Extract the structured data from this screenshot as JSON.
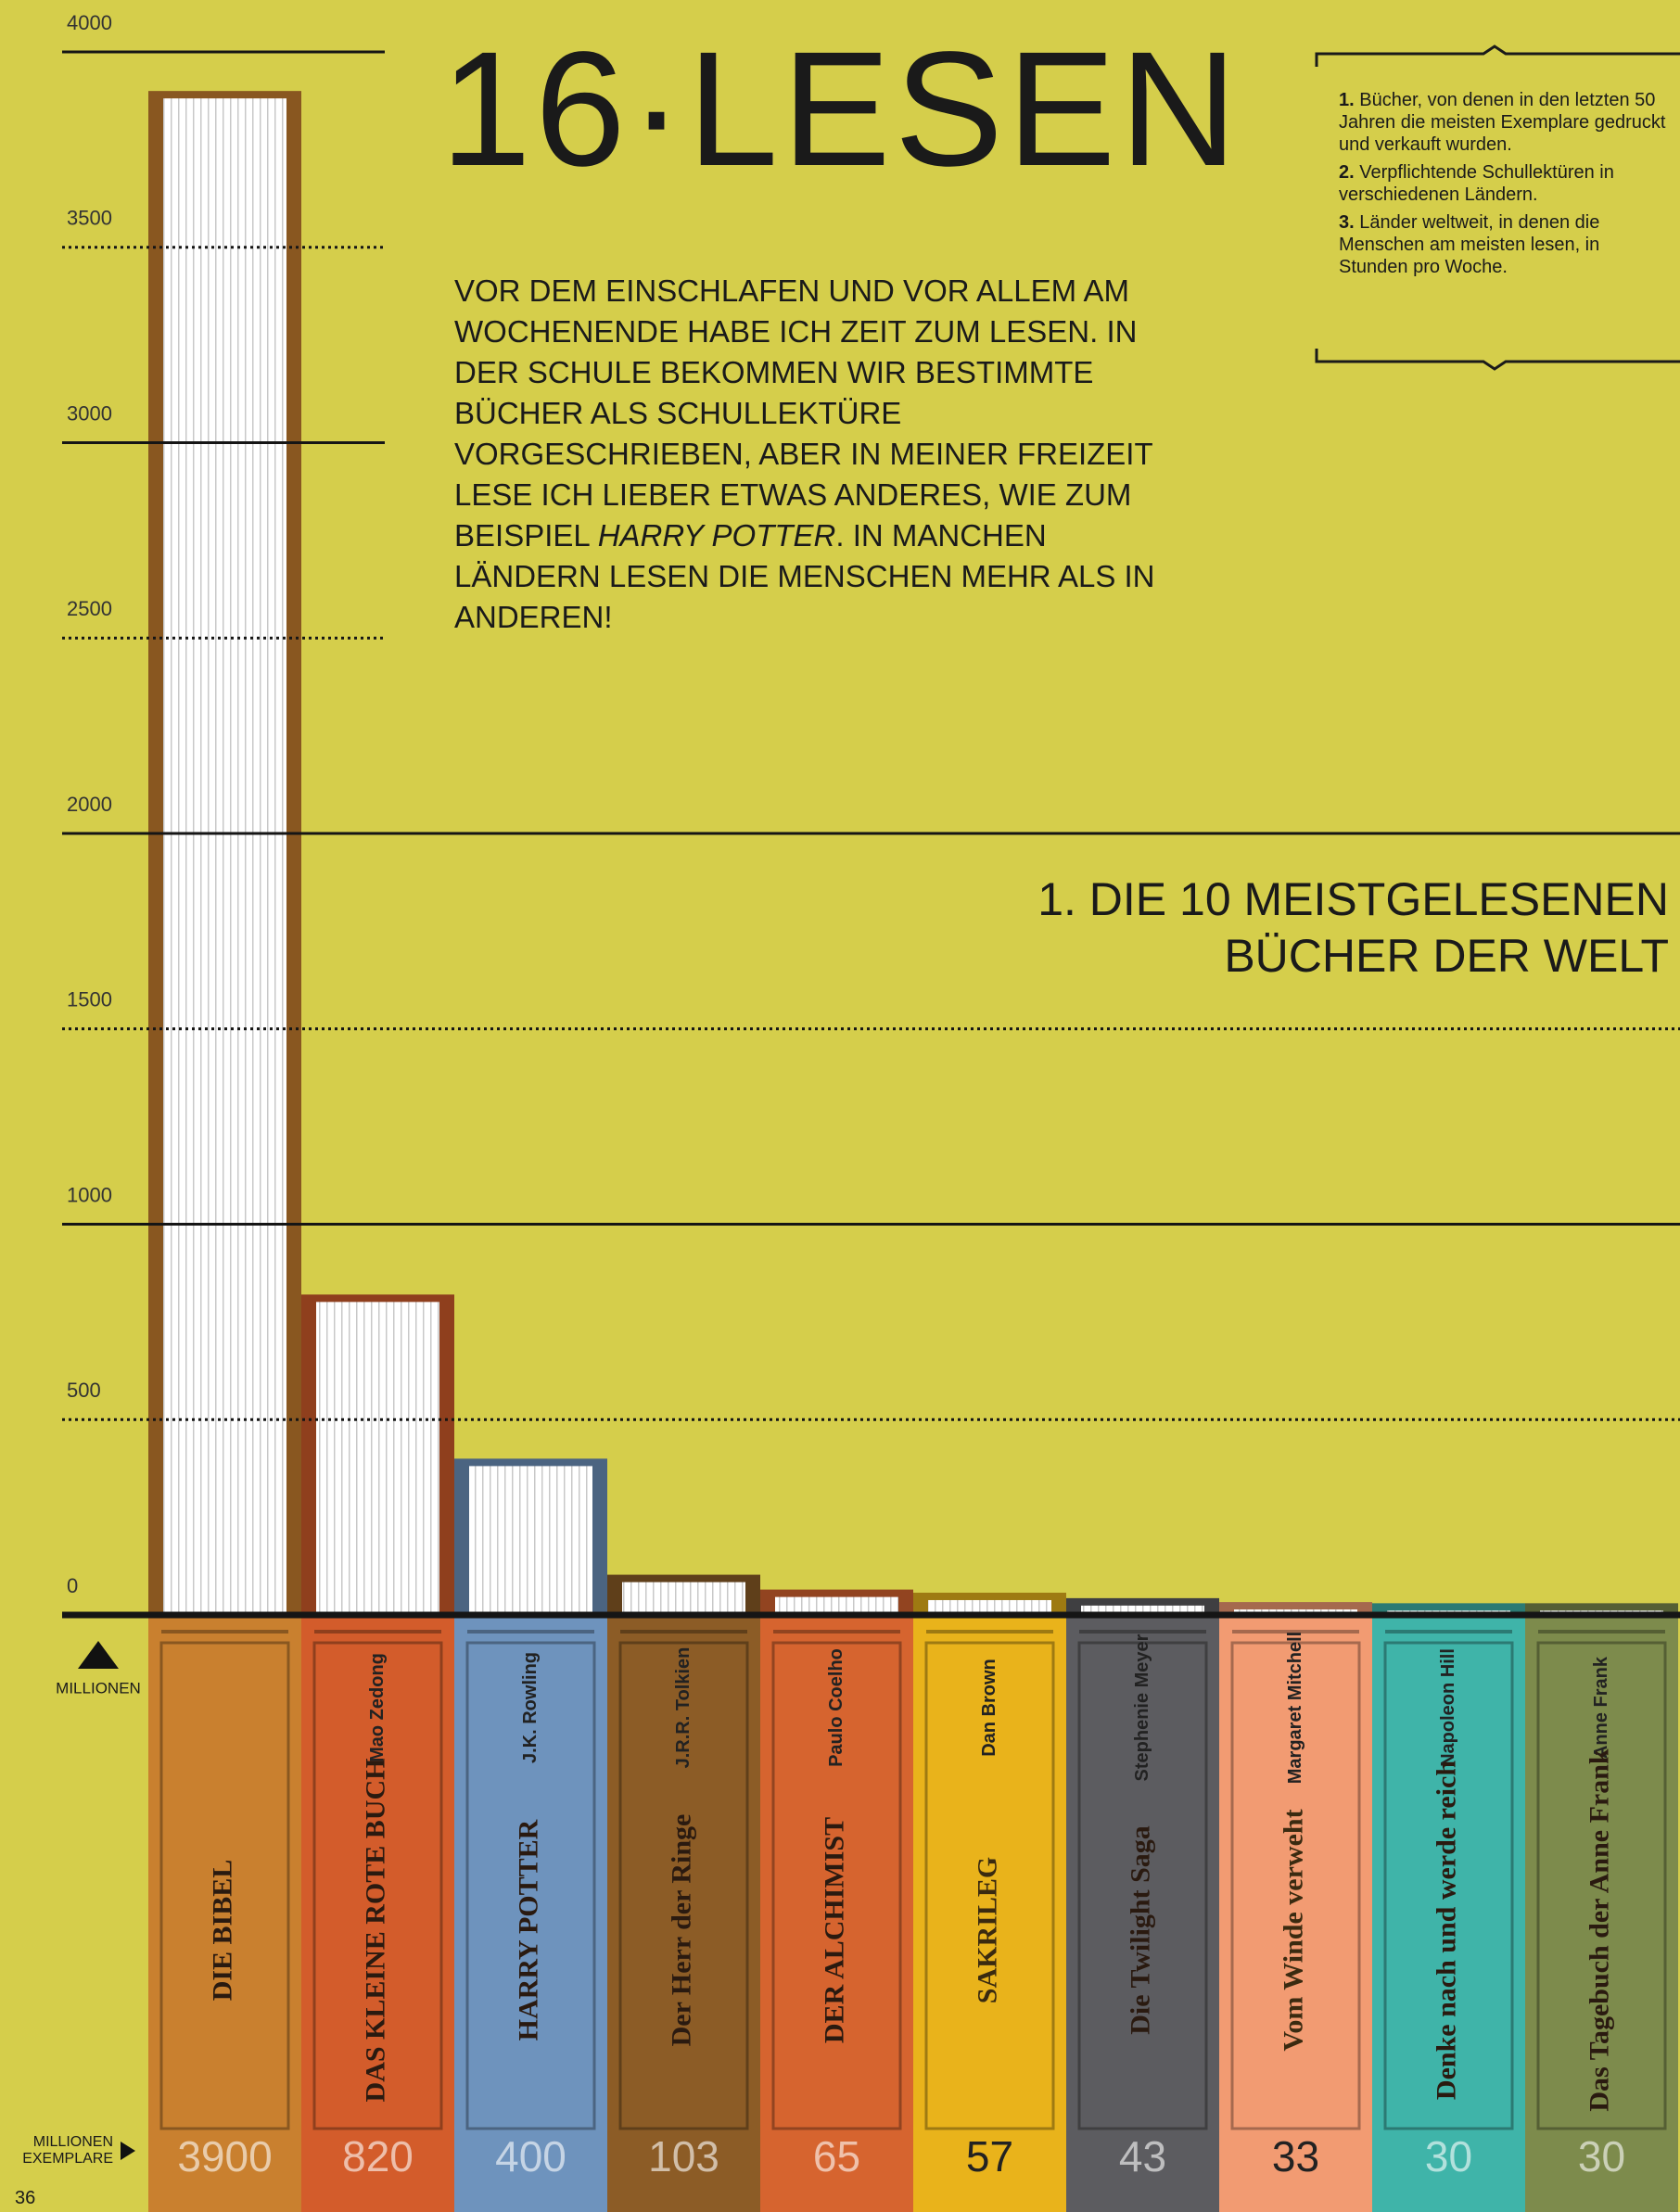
{
  "page": {
    "number": "36"
  },
  "header": {
    "title": "16·LESEN",
    "intro": [
      "VOR DEM EINSCHLAFEN UND VOR ALLEM AM WOCHENENDE HABE ICH ZEIT ZUM LESEN. IN DER SCHULE BEKOMMEN WIR BESTIMMTE BÜCHER ALS SCHULLEKTÜRE VORGESCHRIEBEN, ABER IN MEINER FREIZEIT LESE ICH LIEBER ETWAS ANDERES, WIE ZUM BEISPIEL ",
      "HARRY POTTER",
      ". IN MANCHEN LÄNDERN LESEN DIE MENSCHEN MEHR ALS IN ANDEREN!"
    ]
  },
  "notes": [
    {
      "number": "1.",
      "text": "Bücher, von denen in den letzten 50 Jahren die meisten Exemplare gedruckt und verkauft wurden."
    },
    {
      "number": "2.",
      "text": "Verpflichtende Schullektüren in verschiedenen Ländern."
    },
    {
      "number": "3.",
      "text": "Länder weltweit, in denen die Menschen am meisten lesen, in Stunden pro Woche."
    }
  ],
  "chart_data": {
    "type": "bar",
    "title": "1. DIE 10 MEISTGELESENEN BÜCHER DER WELT",
    "y_label": "MILLIONEN",
    "x_label": "MILLIONEN EXEMPLARE",
    "categories": [
      "DIE BIBEL",
      "DAS KLEINE ROTE BUCH",
      "HARRY POTTER",
      "Der Herr der Ringe",
      "DER ALCHIMIST",
      "SAKRILEG",
      "Die Twilight Saga",
      "Vom Winde verweht",
      "Denke nach und werde reich",
      "Das Tagebuch der Anne Frank"
    ],
    "authors": [
      null,
      "Mao Zedong",
      "J.K. Rowling",
      "J.R.R. Tolkien",
      "Paulo Coelho",
      "Dan Brown",
      "Stephenie Meyer",
      "Margaret Mitchell",
      "Napoleon Hill",
      "Anne Frank"
    ],
    "values": [
      3900,
      820,
      400,
      103,
      65,
      57,
      43,
      33,
      30,
      30
    ],
    "colors": [
      "#c9802f",
      "#d35c2b",
      "#6e93bd",
      "#8c5c26",
      "#d6642f",
      "#e9b31b",
      "#5c5c60",
      "#f29b72",
      "#3fb4a9",
      "#7d8b4c"
    ],
    "ylim": [
      0,
      4000
    ],
    "yticks": [
      0,
      500,
      1000,
      1500,
      2000,
      2500,
      3000,
      3500,
      4000
    ],
    "grid": true
  }
}
